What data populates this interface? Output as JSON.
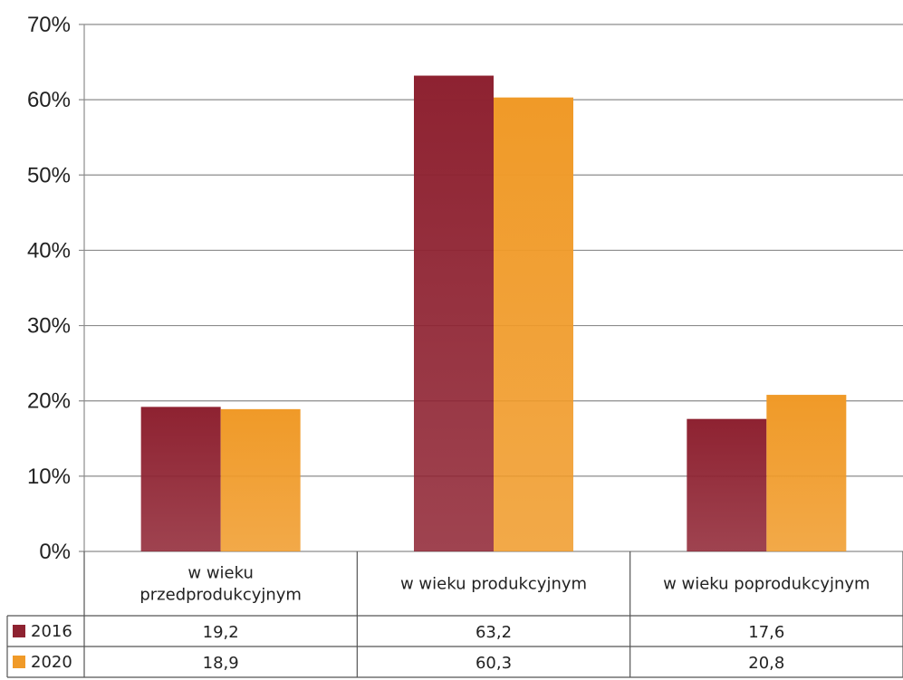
{
  "chart_data": {
    "type": "bar",
    "categories": [
      "w wieku\nprzedprodukcyjnym",
      "w wieku produkcyjnym",
      "w wieku poprodukcyjnym"
    ],
    "series": [
      {
        "name": "2016",
        "values": [
          19.2,
          63.2,
          17.6
        ],
        "value_labels": [
          "19,2",
          "63,2",
          "17,6"
        ],
        "color": "#8e2231"
      },
      {
        "name": "2020",
        "values": [
          18.9,
          60.3,
          20.8
        ],
        "value_labels": [
          "18,9",
          "60,3",
          "20,8"
        ],
        "color": "#f09a28"
      }
    ],
    "yticks": [
      "0%",
      "10%",
      "20%",
      "30%",
      "40%",
      "50%",
      "60%",
      "70%"
    ],
    "ylim": [
      0,
      70
    ],
    "grid": true,
    "legend": "data-table"
  }
}
